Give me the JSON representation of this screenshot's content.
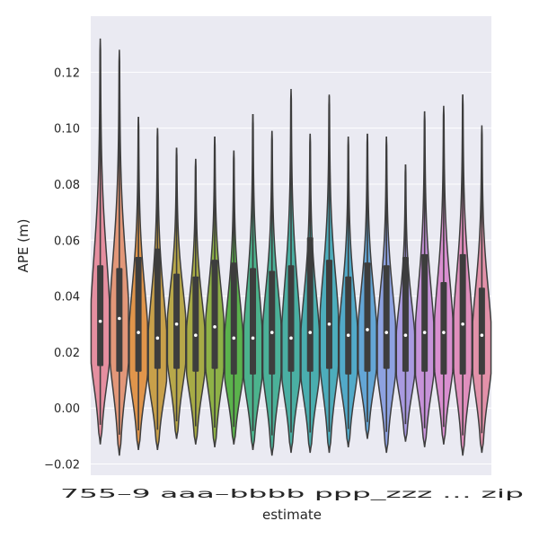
{
  "chart_data": {
    "type": "violin",
    "xlabel": "estimate",
    "ylabel": "APE (m)",
    "ylim": [
      -0.024,
      0.14
    ],
    "yticks": [
      -0.02,
      0.0,
      0.02,
      0.04,
      0.06,
      0.08,
      0.1,
      0.12
    ],
    "ytick_labels": [
      "−0.02",
      "0.00",
      "0.02",
      "0.04",
      "0.06",
      "0.08",
      "0.10",
      "0.12"
    ],
    "grid": true,
    "category_label_text": "755–9 aaa–bbbb ppp_zzz … zip",
    "categories": [
      {
        "color": "#e58fa0",
        "min": -0.013,
        "q1": 0.015,
        "median": 0.031,
        "q3": 0.051,
        "max": 0.132
      },
      {
        "color": "#e29779",
        "min": -0.017,
        "q1": 0.013,
        "median": 0.032,
        "q3": 0.05,
        "max": 0.128
      },
      {
        "color": "#e0954b",
        "min": -0.015,
        "q1": 0.013,
        "median": 0.027,
        "q3": 0.054,
        "max": 0.104
      },
      {
        "color": "#c8a04a",
        "min": -0.015,
        "q1": 0.014,
        "median": 0.025,
        "q3": 0.057,
        "max": 0.1
      },
      {
        "color": "#b8a84a",
        "min": -0.011,
        "q1": 0.014,
        "median": 0.03,
        "q3": 0.048,
        "max": 0.093
      },
      {
        "color": "#a7ab46",
        "min": -0.013,
        "q1": 0.013,
        "median": 0.026,
        "q3": 0.047,
        "max": 0.089
      },
      {
        "color": "#8fb247",
        "min": -0.014,
        "q1": 0.014,
        "median": 0.029,
        "q3": 0.053,
        "max": 0.097
      },
      {
        "color": "#5bb34c",
        "min": -0.013,
        "q1": 0.012,
        "median": 0.025,
        "q3": 0.052,
        "max": 0.092
      },
      {
        "color": "#4cb38d",
        "min": -0.015,
        "q1": 0.012,
        "median": 0.025,
        "q3": 0.05,
        "max": 0.105
      },
      {
        "color": "#4bb199",
        "min": -0.017,
        "q1": 0.012,
        "median": 0.027,
        "q3": 0.049,
        "max": 0.099
      },
      {
        "color": "#4aafa3",
        "min": -0.016,
        "q1": 0.013,
        "median": 0.025,
        "q3": 0.051,
        "max": 0.114
      },
      {
        "color": "#4aaeaf",
        "min": -0.016,
        "q1": 0.013,
        "median": 0.027,
        "q3": 0.061,
        "max": 0.098
      },
      {
        "color": "#4dadbc",
        "min": -0.016,
        "q1": 0.014,
        "median": 0.03,
        "q3": 0.053,
        "max": 0.112
      },
      {
        "color": "#52aac9",
        "min": -0.014,
        "q1": 0.012,
        "median": 0.026,
        "q3": 0.047,
        "max": 0.097
      },
      {
        "color": "#64a6d6",
        "min": -0.011,
        "q1": 0.013,
        "median": 0.028,
        "q3": 0.052,
        "max": 0.098
      },
      {
        "color": "#8ea2e1",
        "min": -0.016,
        "q1": 0.014,
        "median": 0.027,
        "q3": 0.051,
        "max": 0.097
      },
      {
        "color": "#a99ae0",
        "min": -0.012,
        "q1": 0.013,
        "median": 0.026,
        "q3": 0.054,
        "max": 0.087
      },
      {
        "color": "#c793d9",
        "min": -0.014,
        "q1": 0.013,
        "median": 0.027,
        "q3": 0.055,
        "max": 0.106
      },
      {
        "color": "#d98fd0",
        "min": -0.013,
        "q1": 0.012,
        "median": 0.027,
        "q3": 0.045,
        "max": 0.108
      },
      {
        "color": "#e08fbd",
        "min": -0.017,
        "q1": 0.012,
        "median": 0.03,
        "q3": 0.055,
        "max": 0.112
      },
      {
        "color": "#e291a9",
        "min": -0.016,
        "q1": 0.012,
        "median": 0.026,
        "q3": 0.043,
        "max": 0.101
      }
    ],
    "colors": {
      "plot_background": "#eaeaf2",
      "grid": "#ffffff",
      "outline": "#3d3d3d"
    }
  }
}
